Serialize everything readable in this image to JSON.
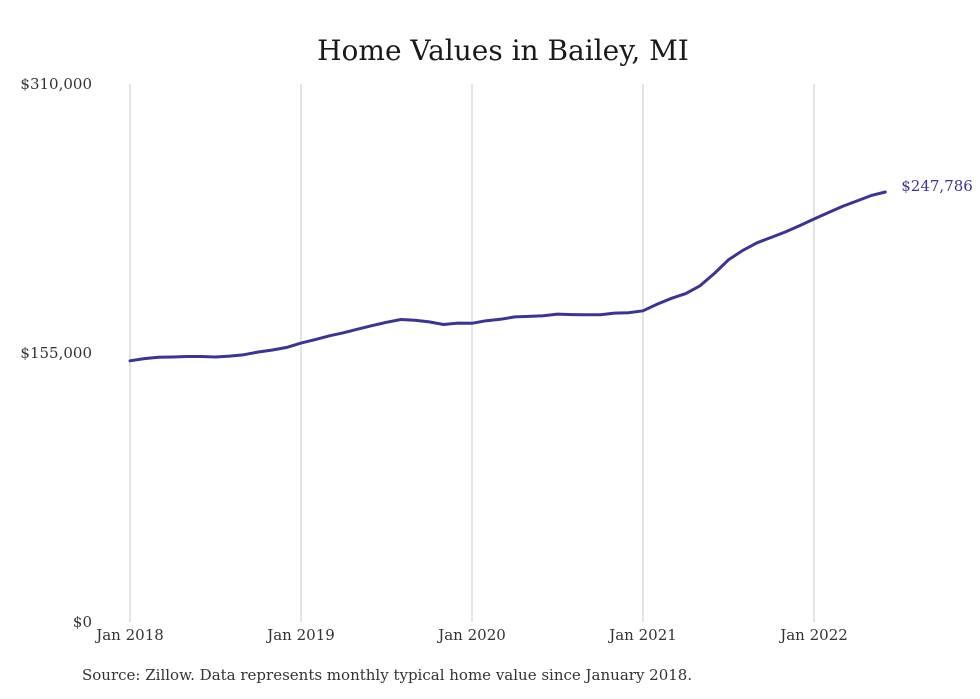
{
  "chart_data": {
    "type": "line",
    "title": "Home Values in Bailey, MI",
    "xlabel": "",
    "ylabel": "",
    "ylim": [
      0,
      310000
    ],
    "y_ticks": [
      {
        "value": 0,
        "label": "$0"
      },
      {
        "value": 155000,
        "label": "$155,000"
      },
      {
        "value": 310000,
        "label": "$310,000"
      }
    ],
    "x_ticks": [
      {
        "value": "2018-01",
        "label": "Jan 2018"
      },
      {
        "value": "2019-01",
        "label": "Jan 2019"
      },
      {
        "value": "2020-01",
        "label": "Jan 2020"
      },
      {
        "value": "2021-01",
        "label": "Jan 2021"
      },
      {
        "value": "2022-01",
        "label": "Jan 2022"
      }
    ],
    "grid": {
      "vertical": true,
      "horizontal": false
    },
    "end_label": "$247,786",
    "series": [
      {
        "color": "#3b3494",
        "points": [
          [
            "2018-01",
            150500
          ],
          [
            "2018-02",
            151800
          ],
          [
            "2018-03",
            152500
          ],
          [
            "2018-04",
            152700
          ],
          [
            "2018-05",
            153000
          ],
          [
            "2018-06",
            153000
          ],
          [
            "2018-07",
            152700
          ],
          [
            "2018-08",
            153200
          ],
          [
            "2018-09",
            154000
          ],
          [
            "2018-10",
            155600
          ],
          [
            "2018-11",
            156700
          ],
          [
            "2018-12",
            158200
          ],
          [
            "2019-01",
            160700
          ],
          [
            "2019-02",
            162700
          ],
          [
            "2019-03",
            164900
          ],
          [
            "2019-04",
            166700
          ],
          [
            "2019-05",
            168800
          ],
          [
            "2019-06",
            170800
          ],
          [
            "2019-07",
            172700
          ],
          [
            "2019-08",
            174300
          ],
          [
            "2019-09",
            173900
          ],
          [
            "2019-10",
            172900
          ],
          [
            "2019-11",
            171400
          ],
          [
            "2019-12",
            172200
          ],
          [
            "2020-01",
            172100
          ],
          [
            "2020-02",
            173600
          ],
          [
            "2020-03",
            174400
          ],
          [
            "2020-04",
            175800
          ],
          [
            "2020-05",
            176100
          ],
          [
            "2020-06",
            176500
          ],
          [
            "2020-07",
            177400
          ],
          [
            "2020-08",
            177100
          ],
          [
            "2020-09",
            177000
          ],
          [
            "2020-10",
            177000
          ],
          [
            "2020-11",
            178000
          ],
          [
            "2020-12",
            178200
          ],
          [
            "2021-01",
            179300
          ],
          [
            "2021-02",
            183200
          ],
          [
            "2021-03",
            186500
          ],
          [
            "2021-04",
            189200
          ],
          [
            "2021-05",
            193700
          ],
          [
            "2021-06",
            200800
          ],
          [
            "2021-07",
            208700
          ],
          [
            "2021-08",
            214100
          ],
          [
            "2021-09",
            218500
          ],
          [
            "2021-10",
            221600
          ],
          [
            "2021-11",
            224800
          ],
          [
            "2021-12",
            228400
          ],
          [
            "2022-01",
            232200
          ],
          [
            "2022-02",
            235900
          ],
          [
            "2022-03",
            239500
          ],
          [
            "2022-04",
            242600
          ],
          [
            "2022-05",
            245700
          ],
          [
            "2022-06",
            247786
          ]
        ]
      }
    ]
  },
  "source_note": "Source: Zillow. Data represents monthly typical home value since January 2018."
}
